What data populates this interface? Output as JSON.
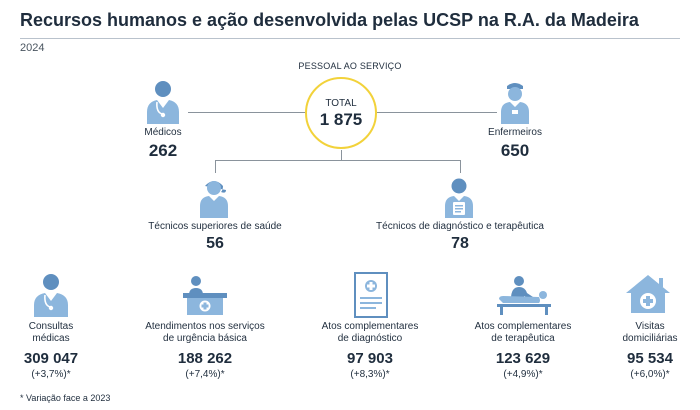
{
  "title": "Recursos humanos e ação desenvolvida pelas UCSP na R.A. da Madeira",
  "year": "2024",
  "staff": {
    "section_label": "PESSOAL AO SERVIÇO",
    "total_label": "TOTAL",
    "total_value": "1 875",
    "medicos": {
      "label": "Médicos",
      "value": "262",
      "icon": "doctor-icon"
    },
    "enfermeiros": {
      "label": "Enfermeiros",
      "value": "650",
      "icon": "nurse-icon"
    },
    "tecnicos_superiores": {
      "label": "Técnicos superiores de saúde",
      "value": "56",
      "icon": "female-technician-icon"
    },
    "tecnicos_diagnostico": {
      "label": "Técnicos de diagnóstico e terapêutica",
      "value": "78",
      "icon": "male-technician-icon"
    }
  },
  "activities": [
    {
      "label_line1": "Consultas",
      "label_line2": "médicas",
      "value": "309 047",
      "variation": "(+3,7%)*",
      "icon": "doctor-consultation-icon"
    },
    {
      "label_line1": "Atendimentos nos serviços",
      "label_line2": "de urgência básica",
      "value": "188 262",
      "variation": "(+7,4%)*",
      "icon": "emergency-desk-icon"
    },
    {
      "label_line1": "Atos complementares",
      "label_line2": "de diagnóstico",
      "value": "97 903",
      "variation": "(+8,3%)*",
      "icon": "medical-report-icon"
    },
    {
      "label_line1": "Atos complementares",
      "label_line2": "de terapêutica",
      "value": "123 629",
      "variation": "(+4,9%)*",
      "icon": "therapy-massage-icon"
    },
    {
      "label_line1": "Visitas",
      "label_line2": "domiciliárias",
      "value": "95 534",
      "variation": "(+6,0%)*",
      "icon": "home-health-icon"
    }
  ],
  "footnote": "* Variação face a 2023",
  "colors": {
    "icon_blue": "#8cb6dd",
    "icon_dark": "#5f8fbf",
    "circle_border": "#f2d23a",
    "text": "#1f2d3d",
    "rule": "#b9c2cc"
  }
}
